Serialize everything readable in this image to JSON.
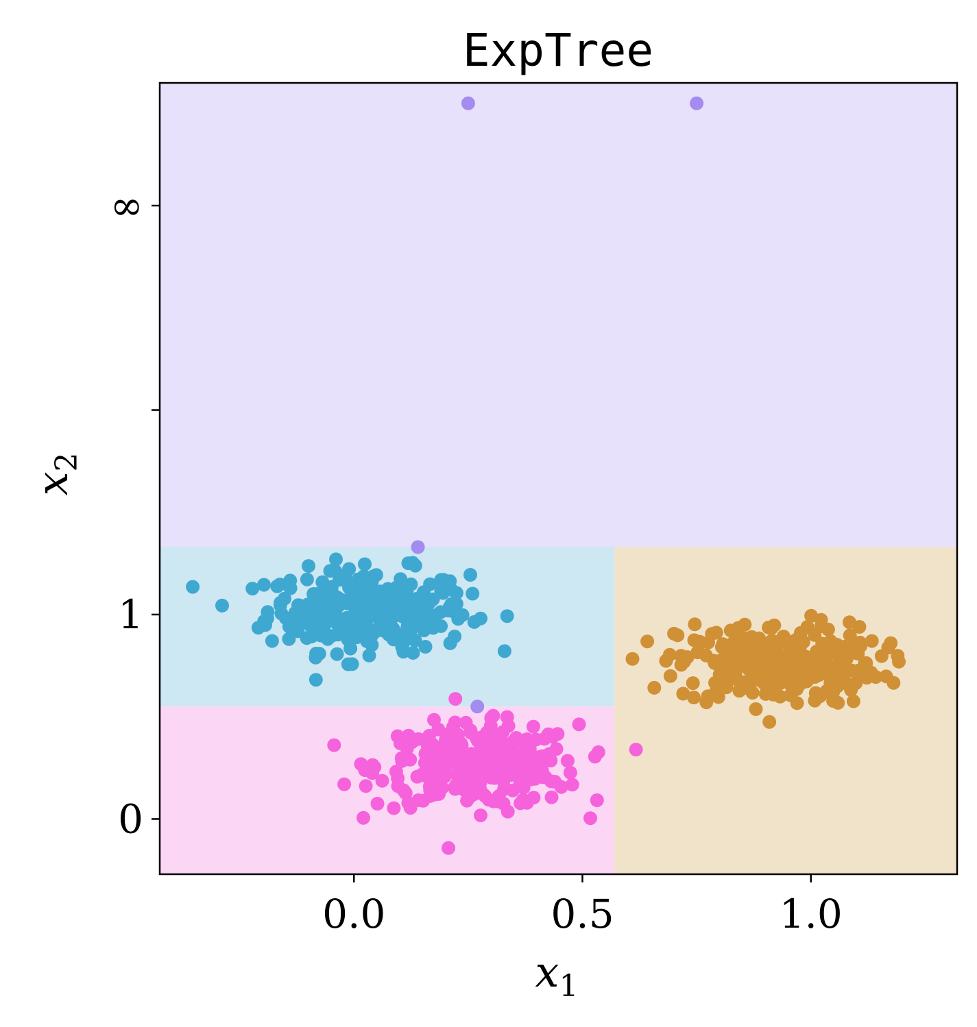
{
  "chart_data": {
    "type": "scatter",
    "title": "ExpTree",
    "xlabel": "x",
    "xlabel_sub": "1",
    "ylabel": "x",
    "ylabel_sub": "2",
    "xlim": [
      -0.425,
      1.32
    ],
    "x_ticks": [
      {
        "value": 0.0,
        "label": "0.0"
      },
      {
        "value": 0.5,
        "label": "0.5"
      },
      {
        "value": 1.0,
        "label": "1.0"
      }
    ],
    "y_ticks": [
      {
        "value": 0,
        "label": "0"
      },
      {
        "value": 1,
        "label": "1"
      },
      {
        "value": 2,
        "label": ""
      },
      {
        "value": 3,
        "label": "∞"
      }
    ],
    "y_scale_note": "compressed axis: 0, 1, then a break marker, then ∞ at top",
    "grid": false,
    "legend": "none",
    "regions": [
      {
        "name": "cyan-region",
        "x": [
          -0.425,
          0.57
        ],
        "y": [
          0.55,
          1.33
        ],
        "color": "#cde7f3"
      },
      {
        "name": "magenta-region",
        "x": [
          -0.425,
          0.57
        ],
        "y": [
          -0.27,
          0.55
        ],
        "color": "#fcd6f5"
      },
      {
        "name": "orange-region",
        "x": [
          0.57,
          1.32
        ],
        "y": [
          -0.27,
          1.33
        ],
        "color": "#f1e3c9"
      },
      {
        "name": "purple-region",
        "x": [
          -0.425,
          1.32
        ],
        "y": [
          1.33,
          3.6
        ],
        "color": "#e8e1fb"
      }
    ],
    "series": [
      {
        "color": "#3ea8d0",
        "center": [
          0.03,
          1.02
        ],
        "spread": [
          0.11,
          0.1
        ],
        "count": 300
      },
      {
        "color": "#f562dc",
        "center": [
          0.27,
          0.26
        ],
        "spread": [
          0.11,
          0.1
        ],
        "count": 300
      },
      {
        "color": "#d09035",
        "center": [
          0.93,
          0.76
        ],
        "spread": [
          0.11,
          0.1
        ],
        "count": 300
      },
      {
        "color": "#a48bf0",
        "points": [
          [
            0.25,
            3.5
          ],
          [
            0.75,
            3.5
          ],
          [
            0.14,
            1.33
          ],
          [
            0.27,
            0.55
          ]
        ]
      }
    ]
  }
}
